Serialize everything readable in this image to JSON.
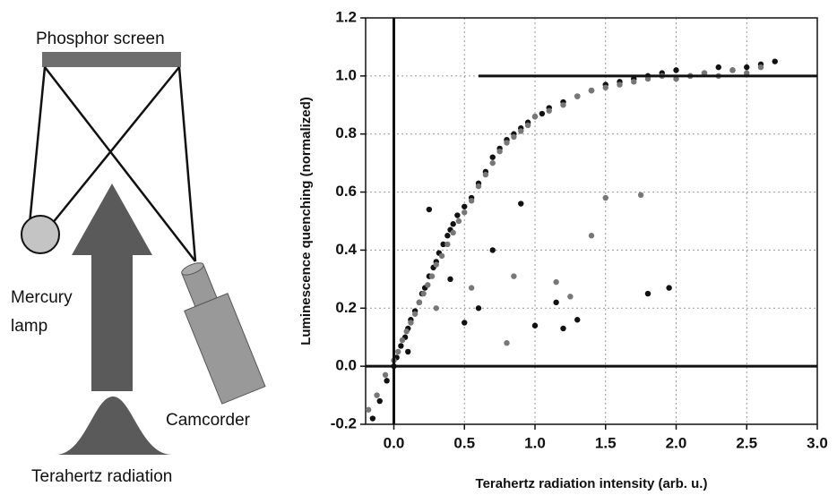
{
  "diagram": {
    "phosphor_screen": "Phosphor screen",
    "mercury_lamp": [
      "Mercury",
      "lamp"
    ],
    "camcorder": "Camcorder",
    "terahertz_radiation": "Terahertz radiation"
  },
  "chart_data": {
    "type": "scatter",
    "x_label": "Terahertz radiation intensity (arb. u.)",
    "y_label": "Luminescence quenching (normalized)",
    "xlim": [
      -0.2,
      3.0
    ],
    "xticks": [
      {
        "value": 0,
        "label": "0.0"
      },
      0.5,
      {
        "value": 1,
        "label": "1.0"
      },
      1.5,
      {
        "value": 2,
        "label": "2.0"
      },
      2.5,
      {
        "value": 3,
        "label": "3.0"
      }
    ],
    "ylim": [
      -0.2,
      1.2
    ],
    "yticks": [
      -0.2,
      {
        "value": 0,
        "label": "0.0"
      },
      0.2,
      0.4,
      0.6,
      0.8,
      {
        "value": 1,
        "label": "1.0"
      },
      1.2
    ],
    "grid": true,
    "reference_lines": [
      {
        "y": 0
      },
      {
        "y": 1,
        "x_from": 0.6
      },
      {
        "x": 0
      }
    ],
    "series": [
      {
        "color": "#111111",
        "x": [
          -0.15,
          -0.1,
          -0.05,
          0,
          0.02,
          0.05,
          0.08,
          0.1,
          0.12,
          0.15,
          0.18,
          0.2,
          0.22,
          0.25,
          0.28,
          0.3,
          0.32,
          0.35,
          0.38,
          0.4,
          0.42,
          0.45,
          0.5,
          0.55,
          0.6,
          0.65,
          0.7,
          0.75,
          0.8,
          0.85,
          0.9,
          0.95,
          1.0,
          1.05,
          1.1,
          1.2,
          1.3,
          1.4,
          1.5,
          1.6,
          1.7,
          1.8,
          1.9,
          2.0,
          2.1,
          2.2,
          2.3,
          2.4,
          2.5,
          2.6,
          2.7,
          0.25,
          0.5,
          0.6,
          0.9,
          1.0,
          1.15,
          1.3,
          1.8,
          1.95,
          0.1,
          0.4,
          0.7,
          1.2
        ],
        "y": [
          -0.18,
          -0.12,
          -0.05,
          0.0,
          0.03,
          0.07,
          0.1,
          0.13,
          0.16,
          0.19,
          0.22,
          0.25,
          0.27,
          0.31,
          0.34,
          0.36,
          0.39,
          0.42,
          0.45,
          0.47,
          0.49,
          0.52,
          0.55,
          0.58,
          0.63,
          0.67,
          0.72,
          0.75,
          0.78,
          0.8,
          0.82,
          0.84,
          0.86,
          0.87,
          0.89,
          0.91,
          0.93,
          0.95,
          0.97,
          0.98,
          0.99,
          1.0,
          1.01,
          1.02,
          1.0,
          1.01,
          1.03,
          1.02,
          1.03,
          1.04,
          1.05,
          0.54,
          0.15,
          0.2,
          0.56,
          0.14,
          0.22,
          0.16,
          0.25,
          0.27,
          0.05,
          0.3,
          0.4,
          0.13
        ]
      },
      {
        "color": "#777777",
        "x": [
          -0.18,
          -0.12,
          -0.06,
          0.0,
          0.03,
          0.06,
          0.09,
          0.12,
          0.15,
          0.18,
          0.21,
          0.24,
          0.27,
          0.3,
          0.34,
          0.38,
          0.42,
          0.46,
          0.5,
          0.55,
          0.6,
          0.65,
          0.7,
          0.75,
          0.8,
          0.85,
          0.9,
          0.95,
          1.0,
          1.1,
          1.2,
          1.3,
          1.4,
          1.5,
          1.6,
          1.7,
          1.8,
          1.9,
          2.0,
          2.1,
          2.2,
          2.3,
          2.4,
          2.5,
          2.6,
          0.3,
          0.55,
          0.85,
          1.15,
          1.4,
          1.5,
          1.75,
          1.25,
          0.8
        ],
        "y": [
          -0.15,
          -0.1,
          -0.03,
          0.02,
          0.05,
          0.09,
          0.12,
          0.15,
          0.18,
          0.22,
          0.25,
          0.28,
          0.31,
          0.35,
          0.38,
          0.42,
          0.46,
          0.5,
          0.53,
          0.57,
          0.62,
          0.66,
          0.7,
          0.74,
          0.77,
          0.79,
          0.81,
          0.83,
          0.86,
          0.88,
          0.9,
          0.93,
          0.95,
          0.96,
          0.97,
          0.98,
          0.99,
          1.0,
          0.99,
          1.0,
          1.01,
          1.0,
          1.02,
          1.01,
          1.03,
          0.2,
          0.27,
          0.31,
          0.29,
          0.45,
          0.58,
          0.59,
          0.24,
          0.08
        ]
      }
    ]
  }
}
